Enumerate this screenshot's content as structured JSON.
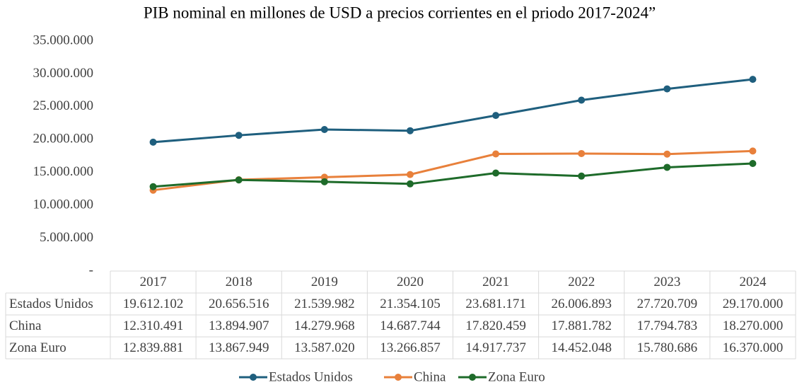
{
  "chart_data": {
    "type": "line",
    "title": "PIB nominal en millones de  USD a precios corrientes en el priodo 2017-2024”",
    "categories": [
      "2017",
      "2018",
      "2019",
      "2020",
      "2021",
      "2022",
      "2023",
      "2024"
    ],
    "series": [
      {
        "name": "Estados Unidos",
        "color": "#1f5f7e",
        "values": [
          19612102,
          20656516,
          21539982,
          21354105,
          23681171,
          26006893,
          27720709,
          29170000
        ],
        "value_labels": [
          "19.612.102",
          "20.656.516",
          "21.539.982",
          "21.354.105",
          "23.681.171",
          "26.006.893",
          "27.720.709",
          "29.170.000"
        ]
      },
      {
        "name": "China",
        "color": "#e8803b",
        "values": [
          12310491,
          13894907,
          14279968,
          14687744,
          17820459,
          17881782,
          17794783,
          18270000
        ],
        "value_labels": [
          "12.310.491",
          "13.894.907",
          "14.279.968",
          "14.687.744",
          "17.820.459",
          "17.881.782",
          "17.794.783",
          "18.270.000"
        ]
      },
      {
        "name": "Zona Euro",
        "color": "#1e6b2a",
        "values": [
          12839881,
          13867949,
          13587020,
          13266857,
          14917737,
          14452048,
          15780686,
          16370000
        ],
        "value_labels": [
          "12.839.881",
          "13.867.949",
          "13.587.020",
          "13.266.857",
          "14.917.737",
          "14.452.048",
          "15.780.686",
          "16.370.000"
        ]
      }
    ],
    "ylim": [
      0,
      35000000
    ],
    "yticks": [
      {
        "value": 0,
        "label": "-"
      },
      {
        "value": 5000000,
        "label": "5.000.000"
      },
      {
        "value": 10000000,
        "label": "10.000.000"
      },
      {
        "value": 15000000,
        "label": "15.000.000"
      },
      {
        "value": 20000000,
        "label": "20.000.000"
      },
      {
        "value": 25000000,
        "label": "25.000.000"
      },
      {
        "value": 30000000,
        "label": "30.000.000"
      },
      {
        "value": 35000000,
        "label": "35.000.000"
      }
    ],
    "grid": false,
    "legend": "bottom"
  }
}
